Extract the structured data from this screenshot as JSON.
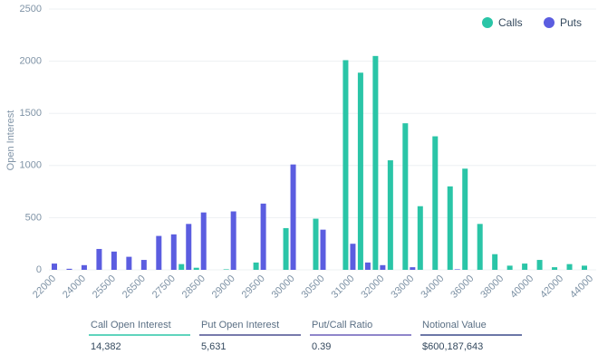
{
  "chart_data": {
    "type": "bar",
    "y_label": "Open Interest",
    "categories": [
      "22000",
      null,
      "24000",
      null,
      "25500",
      null,
      "26500",
      null,
      "27500",
      null,
      "28500",
      null,
      "29000",
      null,
      "29500",
      null,
      "30000",
      null,
      "30500",
      null,
      "31000",
      null,
      "32000",
      null,
      "33000",
      null,
      "34000",
      null,
      "36000",
      null,
      "38000",
      null,
      "40000",
      null,
      "42000",
      null,
      "44000"
    ],
    "series": [
      {
        "name": "Calls",
        "color": "#2ac5a7",
        "values": [
          0,
          0,
          0,
          0,
          0,
          0,
          0,
          0,
          0,
          55,
          20,
          0,
          5,
          0,
          70,
          0,
          400,
          0,
          490,
          0,
          2010,
          1890,
          2050,
          1050,
          1405,
          610,
          1280,
          800,
          970,
          440,
          150,
          40,
          60,
          95,
          25,
          55,
          40
        ]
      },
      {
        "name": "Puts",
        "color": "#5b5de0",
        "values": [
          60,
          10,
          45,
          200,
          175,
          125,
          95,
          325,
          340,
          440,
          550,
          0,
          560,
          0,
          635,
          0,
          1010,
          0,
          385,
          0,
          250,
          70,
          45,
          0,
          25,
          0,
          0,
          5,
          0,
          0,
          0,
          0,
          0,
          0,
          0,
          0,
          0
        ]
      }
    ],
    "ylim": [
      0,
      2500
    ],
    "yticks": [
      0,
      500,
      1000,
      1500,
      2000,
      2500
    ],
    "grid": true,
    "legend": "top-right"
  },
  "stats": [
    {
      "label": "Call Open Interest",
      "value": "14,382",
      "color": "#2ac5a7"
    },
    {
      "label": "Put Open Interest",
      "value": "5,631",
      "color": "#4a4f8f"
    },
    {
      "label": "Put/Call Ratio",
      "value": "0.39",
      "color": "#6a5fb8"
    },
    {
      "label": "Notional Value",
      "value": "$600,187,643",
      "color": "#3c4a8a"
    }
  ]
}
